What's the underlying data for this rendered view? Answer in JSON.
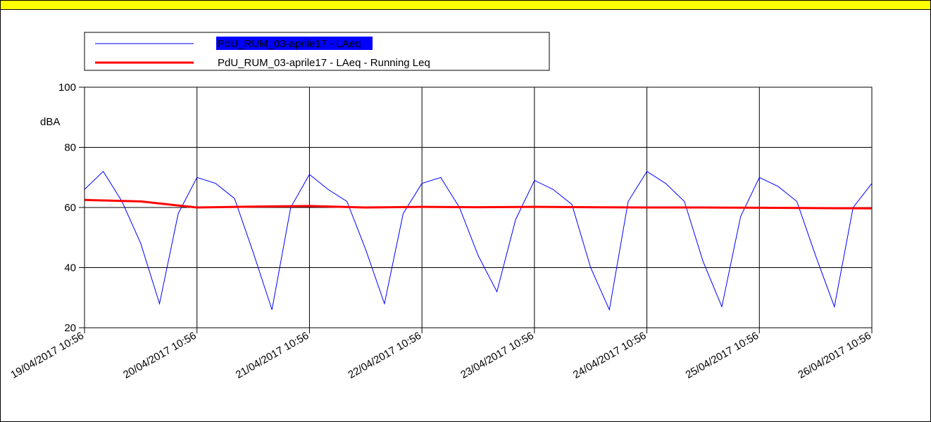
{
  "chart_data": {
    "type": "line",
    "y_label": "dBA",
    "ylim": [
      20,
      100
    ],
    "yticks": [
      20,
      40,
      60,
      80,
      100
    ],
    "xlim": [
      "19/04/2017 10:56",
      "26/04/2017 10:56"
    ],
    "xticks": [
      "19/04/2017 10:56",
      "20/04/2017 10:56",
      "21/04/2017 10:56",
      "22/04/2017 10:56",
      "23/04/2017 10:56",
      "24/04/2017 10:56",
      "25/04/2017 10:56",
      "26/04/2017 10:56"
    ],
    "grid": true,
    "legend": "top-left",
    "series": [
      {
        "name": "PdU_RUM_03-aprile17 - LAeq",
        "color": "#0000ff",
        "width": 1,
        "x": [
          "19/04/2017 10:56",
          "19/04/2017 14:56",
          "19/04/2017 18:56",
          "19/04/2017 22:56",
          "20/04/2017 02:56",
          "20/04/2017 06:56",
          "20/04/2017 10:56",
          "20/04/2017 14:56",
          "20/04/2017 18:56",
          "20/04/2017 22:56",
          "21/04/2017 02:56",
          "21/04/2017 06:56",
          "21/04/2017 10:56",
          "21/04/2017 14:56",
          "21/04/2017 18:56",
          "21/04/2017 22:56",
          "22/04/2017 02:56",
          "22/04/2017 06:56",
          "22/04/2017 10:56",
          "22/04/2017 14:56",
          "22/04/2017 18:56",
          "22/04/2017 22:56",
          "23/04/2017 02:56",
          "23/04/2017 06:56",
          "23/04/2017 10:56",
          "23/04/2017 14:56",
          "23/04/2017 18:56",
          "23/04/2017 22:56",
          "24/04/2017 02:56",
          "24/04/2017 06:56",
          "24/04/2017 10:56",
          "24/04/2017 14:56",
          "24/04/2017 18:56",
          "24/04/2017 22:56",
          "25/04/2017 02:56",
          "25/04/2017 06:56",
          "25/04/2017 10:56",
          "25/04/2017 14:56",
          "25/04/2017 18:56",
          "25/04/2017 22:56",
          "26/04/2017 02:56",
          "26/04/2017 06:56",
          "26/04/2017 10:56"
        ],
        "values": [
          66,
          72,
          62,
          48,
          28,
          58,
          70,
          68,
          63,
          45,
          26,
          60,
          71,
          66,
          62,
          46,
          28,
          58,
          68,
          70,
          60,
          44,
          32,
          56,
          69,
          66,
          61,
          40,
          26,
          62,
          72,
          68,
          62,
          42,
          27,
          57,
          70,
          67,
          62,
          44,
          27,
          60,
          68
        ]
      },
      {
        "name": "PdU_RUM_03-aprile17 - LAeq - Running Leq",
        "color": "#ff0000",
        "width": 3,
        "x": [
          "19/04/2017 10:56",
          "19/04/2017 22:56",
          "20/04/2017 10:56",
          "20/04/2017 22:56",
          "21/04/2017 10:56",
          "21/04/2017 22:56",
          "22/04/2017 10:56",
          "22/04/2017 22:56",
          "23/04/2017 10:56",
          "23/04/2017 22:56",
          "24/04/2017 10:56",
          "24/04/2017 22:56",
          "25/04/2017 10:56",
          "25/04/2017 22:56",
          "26/04/2017 10:56"
        ],
        "values": [
          62.5,
          62,
          60,
          60.3,
          60.5,
          60,
          60.2,
          60.1,
          60.2,
          60.1,
          60,
          60,
          59.9,
          59.8,
          59.7
        ]
      }
    ]
  }
}
